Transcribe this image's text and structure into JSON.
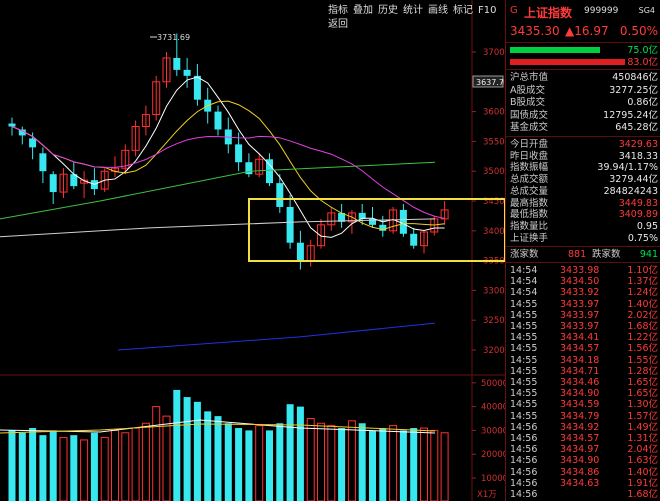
{
  "toolbar": {
    "items": [
      "指标",
      "叠加",
      "历史",
      "统计",
      "画线",
      "标记",
      "F10",
      "返回"
    ]
  },
  "chart": {
    "high_label": "3731.69",
    "y_ticks": [
      "3700",
      "3650",
      "3600",
      "3550",
      "3500",
      "3450",
      "3400",
      "3350",
      "3300",
      "3250",
      "3200"
    ],
    "current_box": "3637.7",
    "vol_ticks": [
      "50000",
      "40000",
      "30000",
      "20000",
      "10000"
    ],
    "vol_unit": "X1万",
    "colors": {
      "up": "#ff3030",
      "down": "#38e8f0",
      "box": "#f0e040",
      "ma5": "#ffffff",
      "ma10": "#f0d020",
      "ma20": "#e040e0",
      "ma60": "#40c040",
      "ma120": "#d0d0d0",
      "ma250": "#2030e0"
    }
  },
  "panel": {
    "gear": "G",
    "name": "上证指数",
    "code": "999999",
    "sg": "SG4",
    "price": "3435.30",
    "change": "▲16.97",
    "pct": "0.50%",
    "bar1": "75.0亿",
    "bar2": "83.0亿",
    "stats": [
      {
        "label": "沪总市值",
        "value": "450846亿",
        "color": "white"
      },
      {
        "label": "A股成交",
        "value": "3277.25亿",
        "color": "white"
      },
      {
        "label": "B股成交",
        "value": "0.86亿",
        "color": "white"
      },
      {
        "label": "国债成交",
        "value": "12795.24亿",
        "color": "white"
      },
      {
        "label": "基金成交",
        "value": "645.28亿",
        "color": "white"
      }
    ],
    "stats2": [
      {
        "label": "今日开盘",
        "value": "3429.63",
        "color": "red"
      },
      {
        "label": "昨日收盘",
        "value": "3418.33",
        "color": "white"
      },
      {
        "label": "指数振幅",
        "value": "39.94/1.17%",
        "color": "white"
      },
      {
        "label": "总成交额",
        "value": "3279.44亿",
        "color": "white"
      },
      {
        "label": "总成交量",
        "value": "284824243",
        "color": "white"
      },
      {
        "label": "最高指数",
        "value": "3449.83",
        "color": "red"
      },
      {
        "label": "最低指数",
        "value": "3409.89",
        "color": "red"
      },
      {
        "label": "指数量比",
        "value": "0.95",
        "color": "white"
      },
      {
        "label": "上证换手",
        "value": "0.75%",
        "color": "white"
      }
    ],
    "updown": {
      "up_label": "涨家数",
      "up": "881",
      "down_label": "跌家数",
      "down": "941"
    },
    "ticks": [
      {
        "t": "14:54",
        "p": "3433.98",
        "v": "1.10亿"
      },
      {
        "t": "14:54",
        "p": "3434.50",
        "v": "1.37亿"
      },
      {
        "t": "14:54",
        "p": "3433.92",
        "v": "1.24亿"
      },
      {
        "t": "14:55",
        "p": "3433.97",
        "v": "1.40亿"
      },
      {
        "t": "14:55",
        "p": "3433.97",
        "v": "2.02亿"
      },
      {
        "t": "14:55",
        "p": "3433.97",
        "v": "1.68亿"
      },
      {
        "t": "14:55",
        "p": "3434.41",
        "v": "1.22亿"
      },
      {
        "t": "14:55",
        "p": "3434.57",
        "v": "1.56亿"
      },
      {
        "t": "14:55",
        "p": "3434.18",
        "v": "1.55亿"
      },
      {
        "t": "14:55",
        "p": "3434.71",
        "v": "1.28亿"
      },
      {
        "t": "14:55",
        "p": "3434.46",
        "v": "1.65亿"
      },
      {
        "t": "14:55",
        "p": "3434.90",
        "v": "1.65亿"
      },
      {
        "t": "14:55",
        "p": "3434.59",
        "v": "1.30亿"
      },
      {
        "t": "14:55",
        "p": "3434.79",
        "v": "1.57亿"
      },
      {
        "t": "14:56",
        "p": "3434.92",
        "v": "1.49亿"
      },
      {
        "t": "14:56",
        "p": "3434.57",
        "v": "1.31亿"
      },
      {
        "t": "14:56",
        "p": "3434.97",
        "v": "2.04亿"
      },
      {
        "t": "14:56",
        "p": "3434.90",
        "v": "1.63亿"
      },
      {
        "t": "14:56",
        "p": "3434.86",
        "v": "1.40亿"
      },
      {
        "t": "14:56",
        "p": "3434.63",
        "v": "1.91亿"
      },
      {
        "t": "14:56",
        "p": "",
        "v": "1.68亿"
      }
    ]
  }
}
